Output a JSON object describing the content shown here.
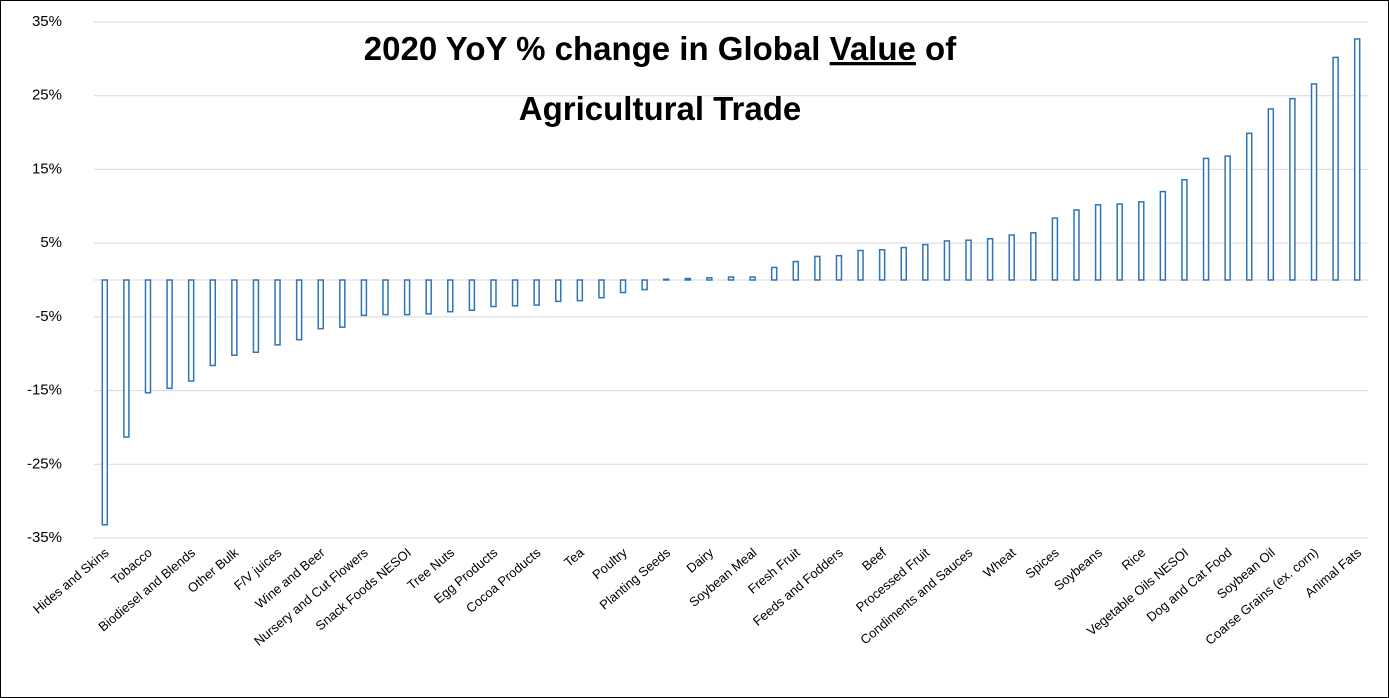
{
  "chart_data": {
    "type": "bar",
    "title": [
      "2020 YoY % change in Global",
      "Value",
      "of",
      "Agricultural Trade"
    ],
    "categories": [
      "Hides and Skins",
      null,
      "Tobacco",
      null,
      "Biodiesel and Blends",
      null,
      "Other Bulk",
      null,
      "F/V juices",
      null,
      "Wine and Beer",
      null,
      "Nursery and Cut Flowers",
      null,
      "Snack Foods NESOI",
      null,
      "Tree Nuts",
      null,
      "Egg Products",
      null,
      "Cocoa Products",
      null,
      "Tea",
      null,
      "Poultry",
      null,
      "Planting Seeds",
      null,
      "Dairy",
      null,
      "Soybean Meal",
      null,
      "Fresh Fruit",
      null,
      "Feeds and Fodders",
      null,
      "Beef",
      null,
      "Processed Fruit",
      null,
      "Condiments and Sauces",
      null,
      "Wheat",
      null,
      "Spices",
      null,
      "Soybeans",
      null,
      "Rice",
      null,
      "Vegetable Oils NESOI",
      null,
      "Dog and Cat Food",
      null,
      "Soybean Oil",
      null,
      "Coarse Grains (ex. corn)",
      null,
      "Animal Fats"
    ],
    "values": [
      -33.2,
      -21.3,
      -15.3,
      -14.7,
      -13.7,
      -11.6,
      -10.2,
      -9.8,
      -8.8,
      -8.1,
      -6.6,
      -6.4,
      -4.8,
      -4.7,
      -4.7,
      -4.6,
      -4.3,
      -4.1,
      -3.6,
      -3.5,
      -3.4,
      -2.9,
      -2.8,
      -2.4,
      -1.7,
      -1.3,
      0.1,
      0.2,
      0.3,
      0.4,
      0.4,
      1.7,
      2.5,
      3.2,
      3.3,
      4.0,
      4.1,
      4.4,
      4.8,
      5.3,
      5.4,
      5.6,
      6.1,
      6.4,
      8.4,
      9.5,
      10.2,
      10.3,
      10.6,
      12.0,
      13.6,
      16.5,
      16.8,
      19.9,
      23.2,
      24.6,
      26.6,
      30.2,
      32.7
    ],
    "color": "#2e75b6",
    "ylim": [
      -35,
      35
    ],
    "yticks": [
      {
        "value": 35,
        "label": "35%"
      },
      {
        "value": 25,
        "label": "25%"
      },
      {
        "value": 15,
        "label": "15%"
      },
      {
        "value": 5,
        "label": "5%"
      },
      {
        "value": -5,
        "label": "-5%"
      },
      {
        "value": -15,
        "label": "-15%"
      },
      {
        "value": -25,
        "label": "-25%"
      },
      {
        "value": -35,
        "label": "-35%"
      }
    ],
    "grid": true
  }
}
